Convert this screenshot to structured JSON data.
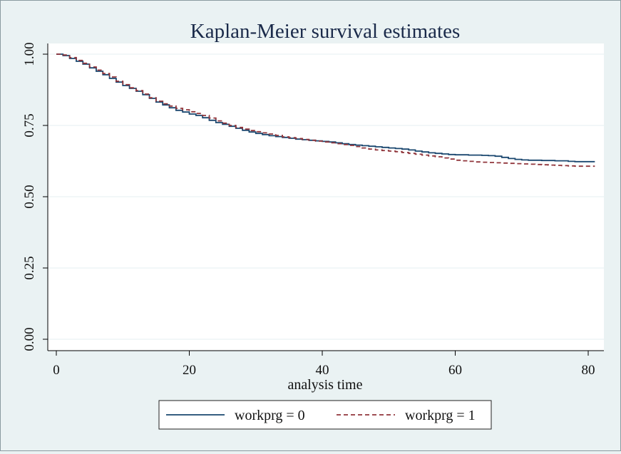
{
  "colors": {
    "background": "#eaf2f3",
    "plot_background": "#ffffff",
    "grid": "#eaf2f3",
    "series0": "#1a476f",
    "series1": "#90353b"
  },
  "chart_data": {
    "type": "line",
    "step": true,
    "title": "Kaplan-Meier survival estimates",
    "xlabel": "analysis time",
    "ylabel": "",
    "xlim": [
      0,
      81
    ],
    "ylim": [
      0,
      1
    ],
    "xticks": [
      0,
      20,
      40,
      60,
      80
    ],
    "xtick_labels": [
      "0",
      "20",
      "40",
      "60",
      "80"
    ],
    "yticks": [
      0,
      0.25,
      0.5,
      0.75,
      1
    ],
    "ytick_labels": [
      "0.00",
      "0.25",
      "0.50",
      "0.75",
      "1.00"
    ],
    "grid": true,
    "legend": {
      "position": "bottom",
      "items": [
        "workprg = 0",
        "workprg = 1"
      ]
    },
    "series": [
      {
        "name": "workprg = 0",
        "style": "solid",
        "x": [
          0,
          1,
          2,
          3,
          4,
          5,
          6,
          7,
          8,
          9,
          10,
          11,
          12,
          13,
          14,
          15,
          16,
          17,
          18,
          19,
          20,
          21,
          22,
          23,
          24,
          25,
          26,
          27,
          28,
          29,
          30,
          31,
          32,
          33,
          34,
          35,
          36,
          37,
          38,
          39,
          40,
          41,
          42,
          43,
          44,
          45,
          46,
          47,
          48,
          49,
          50,
          51,
          52,
          53,
          54,
          55,
          56,
          57,
          58,
          59,
          60,
          61,
          62,
          63,
          64,
          65,
          66,
          67,
          68,
          69,
          70,
          71,
          72,
          73,
          74,
          75,
          76,
          77,
          78,
          79,
          80,
          81
        ],
        "y": [
          1.0,
          0.995,
          0.985,
          0.975,
          0.965,
          0.952,
          0.94,
          0.928,
          0.915,
          0.902,
          0.89,
          0.88,
          0.87,
          0.858,
          0.845,
          0.832,
          0.822,
          0.812,
          0.803,
          0.797,
          0.79,
          0.785,
          0.777,
          0.768,
          0.76,
          0.754,
          0.747,
          0.74,
          0.733,
          0.727,
          0.722,
          0.718,
          0.714,
          0.711,
          0.708,
          0.705,
          0.702,
          0.7,
          0.698,
          0.696,
          0.694,
          0.692,
          0.689,
          0.686,
          0.683,
          0.681,
          0.679,
          0.677,
          0.675,
          0.673,
          0.671,
          0.669,
          0.667,
          0.664,
          0.66,
          0.657,
          0.654,
          0.652,
          0.65,
          0.648,
          0.647,
          0.647,
          0.646,
          0.646,
          0.645,
          0.644,
          0.642,
          0.638,
          0.634,
          0.631,
          0.629,
          0.628,
          0.628,
          0.627,
          0.627,
          0.626,
          0.626,
          0.624,
          0.623,
          0.623,
          0.623,
          0.623
        ]
      },
      {
        "name": "workprg = 1",
        "style": "dashed",
        "x": [
          0,
          1,
          2,
          3,
          4,
          5,
          6,
          7,
          8,
          9,
          10,
          11,
          12,
          13,
          14,
          15,
          16,
          17,
          18,
          19,
          20,
          21,
          22,
          23,
          24,
          25,
          26,
          27,
          28,
          29,
          30,
          31,
          32,
          33,
          34,
          35,
          36,
          37,
          38,
          39,
          40,
          41,
          42,
          43,
          44,
          45,
          46,
          47,
          48,
          49,
          50,
          51,
          52,
          53,
          54,
          55,
          56,
          57,
          58,
          59,
          60,
          61,
          62,
          63,
          64,
          65,
          66,
          67,
          68,
          69,
          70,
          71,
          72,
          73,
          74,
          75,
          76,
          77,
          78,
          79,
          80,
          81
        ],
        "y": [
          1.0,
          0.997,
          0.988,
          0.978,
          0.968,
          0.955,
          0.944,
          0.932,
          0.92,
          0.905,
          0.893,
          0.882,
          0.872,
          0.86,
          0.847,
          0.835,
          0.826,
          0.818,
          0.81,
          0.805,
          0.798,
          0.792,
          0.785,
          0.776,
          0.766,
          0.758,
          0.75,
          0.743,
          0.737,
          0.732,
          0.728,
          0.724,
          0.72,
          0.715,
          0.71,
          0.707,
          0.704,
          0.701,
          0.698,
          0.695,
          0.692,
          0.689,
          0.686,
          0.683,
          0.68,
          0.676,
          0.671,
          0.667,
          0.664,
          0.662,
          0.66,
          0.658,
          0.655,
          0.652,
          0.649,
          0.646,
          0.643,
          0.64,
          0.636,
          0.632,
          0.628,
          0.626,
          0.624,
          0.622,
          0.621,
          0.62,
          0.619,
          0.618,
          0.617,
          0.616,
          0.615,
          0.614,
          0.613,
          0.612,
          0.611,
          0.61,
          0.609,
          0.608,
          0.607,
          0.607,
          0.607,
          0.607
        ]
      }
    ]
  }
}
